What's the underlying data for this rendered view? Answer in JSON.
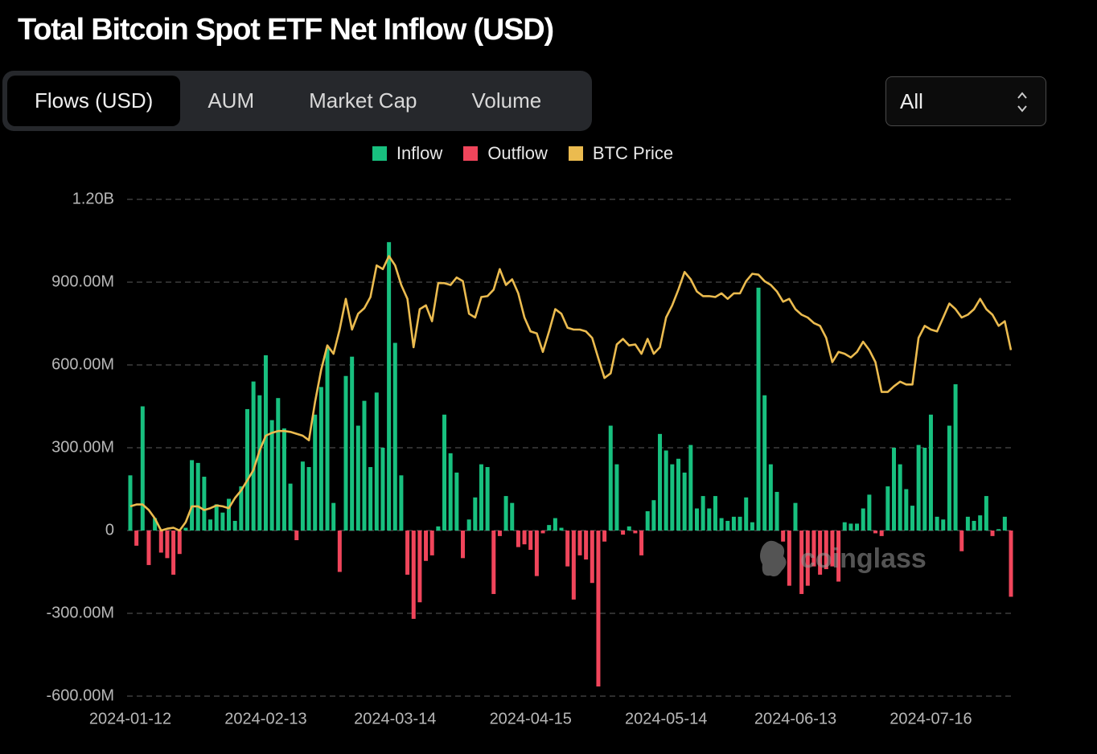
{
  "header": {
    "title": "Total Bitcoin Spot ETF Net Inflow (USD)"
  },
  "tabs": [
    "Flows (USD)",
    "AUM",
    "Market Cap",
    "Volume"
  ],
  "dropdown": "All",
  "watermark": "coinglass",
  "chart_data": {
    "type": "bar",
    "legend": "top",
    "grid": true,
    "categories": [
      "2024-01-12",
      null,
      null,
      null,
      null,
      null,
      null,
      null,
      null,
      null,
      null,
      null,
      null,
      null,
      null,
      null,
      null,
      null,
      null,
      null,
      null,
      null,
      "2024-02-13",
      null,
      null,
      null,
      null,
      null,
      null,
      null,
      null,
      null,
      null,
      null,
      null,
      null,
      null,
      null,
      null,
      null,
      null,
      null,
      null,
      "2024-03-14",
      null,
      null,
      null,
      null,
      null,
      null,
      null,
      null,
      null,
      null,
      null,
      null,
      null,
      null,
      null,
      null,
      null,
      null,
      null,
      null,
      null,
      "2024-04-15",
      null,
      null,
      null,
      null,
      null,
      null,
      null,
      null,
      null,
      null,
      null,
      null,
      null,
      null,
      null,
      null,
      null,
      null,
      null,
      null,
      null,
      "2024-05-14",
      null,
      null,
      null,
      null,
      null,
      null,
      null,
      null,
      null,
      null,
      null,
      null,
      null,
      null,
      null,
      null,
      null,
      null,
      null,
      null,
      "2024-06-13",
      null,
      null,
      null,
      null,
      null,
      null,
      null,
      null,
      null,
      null,
      null,
      null,
      null,
      null,
      null,
      null,
      null,
      null,
      null,
      null,
      null,
      "2024-07-16",
      null,
      null,
      null,
      null,
      null,
      null,
      null,
      null,
      null,
      null,
      null,
      null,
      null
    ],
    "ylim": [
      -600000000,
      1200000000
    ],
    "yticks": [
      {
        "value": -600000000,
        "label": "-600.00M"
      },
      {
        "value": -300000000,
        "label": "-300.00M"
      },
      0,
      {
        "value": 300000000,
        "label": "300.00M"
      },
      {
        "value": 600000000,
        "label": "600.00M"
      },
      {
        "value": 900000000,
        "label": "900.00M"
      },
      {
        "value": 1200000000,
        "label": "1.20B"
      }
    ],
    "y2lim": [
      25600,
      79000
    ],
    "series": [
      {
        "name": "Inflow",
        "color": "#18c07f",
        "values": [
          200000000.0,
          null,
          450000000.0,
          null,
          45000000.0,
          null,
          null,
          null,
          null,
          10000000.0,
          255000000.0,
          245000000.0,
          195000000.0,
          40000000.0,
          95000000.0,
          65000000.0,
          115000000.0,
          35000000.0,
          160000000.0,
          440000000.0,
          540000000.0,
          490000000.0,
          635000000.0,
          400000000.0,
          480000000.0,
          370000000.0,
          170000000.0,
          null,
          250000000.0,
          230000000.0,
          420000000.0,
          520000000.0,
          660000000.0,
          100000000.0,
          null,
          560000000.0,
          630000000.0,
          380000000.0,
          470000000.0,
          230000000.0,
          500000000.0,
          300000000.0,
          1045000000.0,
          680000000.0,
          200000000.0,
          null,
          null,
          null,
          null,
          null,
          15000000.0,
          420000000.0,
          280000000.0,
          210000000.0,
          null,
          40000000.0,
          120000000.0,
          240000000.0,
          230000000.0,
          null,
          null,
          125000000.0,
          100000000.0,
          null,
          null,
          null,
          null,
          null,
          20000000.0,
          45000000.0,
          10000000.0,
          null,
          null,
          null,
          null,
          null,
          null,
          null,
          380000000.0,
          240000000.0,
          null,
          15000000.0,
          null,
          null,
          70000000.0,
          110000000.0,
          350000000.0,
          290000000.0,
          240000000.0,
          260000000.0,
          210000000.0,
          310000000.0,
          80000000.0,
          125000000.0,
          80000000.0,
          125000000.0,
          45000000.0,
          35000000.0,
          50000000.0,
          50000000.0,
          120000000.0,
          30000000.0,
          880000000.0,
          490000000.0,
          240000000.0,
          140000000.0,
          null,
          null,
          100000000.0,
          null,
          null,
          null,
          null,
          null,
          null,
          null,
          30000000.0,
          25000000.0,
          25000000.0,
          80000000.0,
          130000000.0,
          null,
          null,
          160000000.0,
          300000000.0,
          240000000.0,
          150000000.0,
          90000000.0,
          310000000.0,
          300000000.0,
          420000000.0,
          50000000.0,
          40000000.0,
          380000000.0,
          530000000.0,
          null,
          50000000.0,
          35000000.0,
          55000000.0,
          125000000.0,
          null,
          5000000.0,
          50000000.0,
          null
        ]
      },
      {
        "name": "Outflow",
        "color": "#f0455b",
        "values": [
          null,
          -55000000.0,
          null,
          -125000000.0,
          null,
          -80000000.0,
          -100000000.0,
          -160000000.0,
          -85000000.0,
          null,
          null,
          null,
          null,
          null,
          null,
          null,
          null,
          null,
          null,
          null,
          null,
          null,
          null,
          null,
          null,
          null,
          null,
          -35000000.0,
          null,
          null,
          null,
          null,
          null,
          null,
          -150000000.0,
          null,
          null,
          null,
          null,
          null,
          null,
          null,
          null,
          null,
          null,
          -160000000.0,
          -320000000.0,
          -260000000.0,
          -110000000.0,
          -90000000.0,
          null,
          null,
          null,
          null,
          -100000000.0,
          null,
          null,
          null,
          null,
          -230000000.0,
          -20000000.0,
          null,
          null,
          -60000000.0,
          -50000000.0,
          -70000000.0,
          -165000000.0,
          -10000000.0,
          null,
          null,
          null,
          -130000000.0,
          -250000000.0,
          -90000000.0,
          -105000000.0,
          -190000000.0,
          -565000000.0,
          -40000000.0,
          null,
          null,
          -15000000.0,
          null,
          -10000000.0,
          -90000000.0,
          null,
          null,
          null,
          null,
          null,
          null,
          null,
          null,
          null,
          null,
          null,
          null,
          null,
          null,
          null,
          null,
          null,
          null,
          null,
          null,
          null,
          null,
          -40000000.0,
          -200000000.0,
          null,
          -230000000.0,
          -200000000.0,
          -130000000.0,
          -160000000.0,
          -140000000.0,
          -130000000.0,
          -185000000.0,
          null,
          null,
          null,
          null,
          null,
          -10000000.0,
          -20000000.0,
          null,
          null,
          null,
          null,
          null,
          null,
          null,
          null,
          null,
          null,
          null,
          null,
          -75000000.0,
          null,
          null,
          null,
          null,
          -20000000.0,
          null,
          null,
          -240000000.0
        ]
      },
      {
        "name": "BTC Price",
        "color": "#ebbb4f",
        "type": "line",
        "axis": "y2",
        "values": [
          46000,
          46200,
          46200,
          45600,
          44700,
          43400,
          43600,
          43700,
          43400,
          44300,
          46000,
          46000,
          45600,
          45800,
          46100,
          46000,
          45800,
          46900,
          47700,
          48800,
          49900,
          52000,
          53600,
          53900,
          54100,
          54100,
          54000,
          53800,
          53600,
          53100,
          57200,
          60700,
          63300,
          62400,
          65000,
          68300,
          65000,
          66700,
          67300,
          68500,
          71900,
          71500,
          72900,
          71900,
          69800,
          68300,
          63100,
          67200,
          67600,
          65900,
          70000,
          70000,
          69800,
          70600,
          70200,
          66700,
          66300,
          68500,
          68600,
          69300,
          71500,
          69800,
          70400,
          68900,
          66300,
          64800,
          64600,
          62600,
          64800,
          67200,
          66700,
          65200,
          65000,
          65000,
          64800,
          64100,
          61900,
          59800,
          60300,
          63400,
          64000,
          63300,
          63400,
          62400,
          64000,
          62400,
          63100,
          66300,
          67600,
          69300,
          71200,
          70400,
          69100,
          68600,
          68600,
          68500,
          68900,
          68300,
          68900,
          68900,
          70200,
          71000,
          70900,
          70200,
          69800,
          69100,
          68000,
          68300,
          67200,
          66600,
          66300,
          65700,
          65400,
          64100,
          61500,
          62600,
          62400,
          62000,
          62600,
          63700,
          62800,
          61500,
          58300,
          58300,
          58900,
          59400,
          59100,
          59100,
          64100,
          65400,
          65000,
          64800,
          66300,
          67800,
          67200,
          66300,
          66600,
          67200,
          68300,
          67200,
          66600,
          65400,
          65900,
          62800
        ]
      }
    ]
  }
}
